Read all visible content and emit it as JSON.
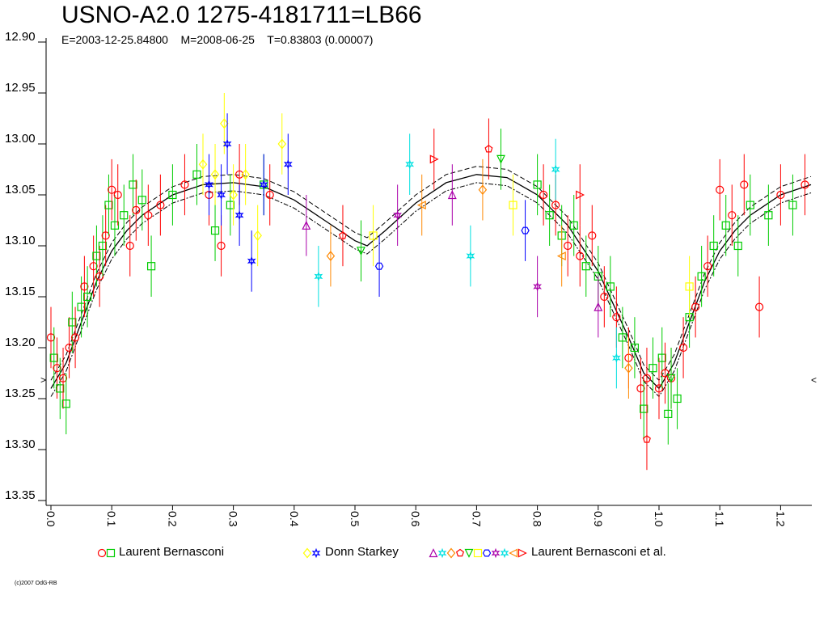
{
  "chart_data": {
    "type": "scatter",
    "title": "USNO-A2.0 1275-4181711=LB66",
    "subtitle": "E=2003-12-25.84800    M=2008-06-25    T=0.83803 (0.00007)",
    "ylim": [
      12.9,
      13.35
    ],
    "y_inverted": true,
    "xlim": [
      0.0,
      1.25
    ],
    "yticks": [
      "12.90",
      "12.95",
      "13.00",
      "13.05",
      "13.10",
      "13.15",
      "13.20",
      "13.25",
      "13.30",
      "13.35"
    ],
    "xticks": [
      "0.0",
      "0.1",
      "0.2",
      "0.3",
      "0.4",
      "0.5",
      "0.6",
      "0.7",
      "0.8",
      "0.9",
      "1.0",
      "1.1",
      "1.2"
    ],
    "grid": false,
    "legend_position": "bottom",
    "legend": [
      {
        "label": "Laurent Bernasconi",
        "symbols": [
          "circle",
          "square"
        ],
        "colors": [
          "#ff0000",
          "#00cc00"
        ]
      },
      {
        "label": "Donn Starkey",
        "symbols": [
          "diamond",
          "cross-star"
        ],
        "colors": [
          "#ffff00",
          "#0000ff"
        ]
      },
      {
        "label": "Laurent Bernasconi et al.",
        "symbols": [
          "triangle-up",
          "star",
          "diamond",
          "pentagon",
          "triangle-down",
          "square",
          "hexagon",
          "star",
          "star",
          "triangle-left",
          "triangle-right"
        ],
        "colors": [
          "#aa00aa",
          "#00e0e0",
          "#ff8800",
          "#ff0000",
          "#00cc00",
          "#ffff00",
          "#0000ff",
          "#aa00aa",
          "#00e0e0",
          "#ff8800",
          "#ff0000"
        ]
      }
    ],
    "fit_curve": {
      "phase": [
        0.0,
        0.025,
        0.05,
        0.075,
        0.1,
        0.125,
        0.15,
        0.2,
        0.25,
        0.3,
        0.35,
        0.4,
        0.45,
        0.5,
        0.52,
        0.55,
        0.6,
        0.65,
        0.7,
        0.75,
        0.8,
        0.85,
        0.9,
        0.95,
        0.975,
        1.0,
        1.025,
        1.05,
        1.075,
        1.1,
        1.125,
        1.15,
        1.2,
        1.25
      ],
      "mag": [
        13.24,
        13.215,
        13.175,
        13.135,
        13.105,
        13.085,
        13.07,
        13.05,
        13.04,
        13.038,
        13.042,
        13.055,
        13.075,
        13.095,
        13.1,
        13.085,
        13.058,
        13.038,
        13.03,
        13.033,
        13.05,
        13.08,
        13.125,
        13.19,
        13.225,
        13.24,
        13.215,
        13.175,
        13.135,
        13.105,
        13.085,
        13.07,
        13.05,
        13.04
      ],
      "band_offset": 0.008
    },
    "series": [
      {
        "name": "Laurent Bernasconi",
        "observations": [
          {
            "phase": 0.0,
            "mag": 13.19,
            "err": 0.03
          },
          {
            "phase": 0.005,
            "mag": 13.21,
            "err": 0.03
          },
          {
            "phase": 0.01,
            "mag": 13.22,
            "err": 0.03
          },
          {
            "phase": 0.015,
            "mag": 13.24,
            "err": 0.03
          },
          {
            "phase": 0.02,
            "mag": 13.23,
            "err": 0.03
          },
          {
            "phase": 0.025,
            "mag": 13.255,
            "err": 0.03
          },
          {
            "phase": 0.03,
            "mag": 13.2,
            "err": 0.03
          },
          {
            "phase": 0.035,
            "mag": 13.175,
            "err": 0.03
          },
          {
            "phase": 0.04,
            "mag": 13.19,
            "err": 0.03
          },
          {
            "phase": 0.05,
            "mag": 13.16,
            "err": 0.03
          },
          {
            "phase": 0.055,
            "mag": 13.14,
            "err": 0.03
          },
          {
            "phase": 0.06,
            "mag": 13.15,
            "err": 0.03
          },
          {
            "phase": 0.07,
            "mag": 13.12,
            "err": 0.03
          },
          {
            "phase": 0.075,
            "mag": 13.11,
            "err": 0.03
          },
          {
            "phase": 0.08,
            "mag": 13.13,
            "err": 0.03
          },
          {
            "phase": 0.085,
            "mag": 13.1,
            "err": 0.03
          },
          {
            "phase": 0.09,
            "mag": 13.09,
            "err": 0.03
          },
          {
            "phase": 0.095,
            "mag": 13.06,
            "err": 0.03
          },
          {
            "phase": 0.1,
            "mag": 13.045,
            "err": 0.03
          },
          {
            "phase": 0.105,
            "mag": 13.08,
            "err": 0.03
          },
          {
            "phase": 0.11,
            "mag": 13.05,
            "err": 0.03
          },
          {
            "phase": 0.12,
            "mag": 13.07,
            "err": 0.03
          },
          {
            "phase": 0.13,
            "mag": 13.1,
            "err": 0.03
          },
          {
            "phase": 0.135,
            "mag": 13.04,
            "err": 0.03
          },
          {
            "phase": 0.14,
            "mag": 13.065,
            "err": 0.03
          },
          {
            "phase": 0.15,
            "mag": 13.055,
            "err": 0.03
          },
          {
            "phase": 0.16,
            "mag": 13.07,
            "err": 0.03
          },
          {
            "phase": 0.165,
            "mag": 13.12,
            "err": 0.03
          },
          {
            "phase": 0.18,
            "mag": 13.06,
            "err": 0.03
          },
          {
            "phase": 0.2,
            "mag": 13.05,
            "err": 0.03
          },
          {
            "phase": 0.22,
            "mag": 13.04,
            "err": 0.03
          },
          {
            "phase": 0.24,
            "mag": 13.03,
            "err": 0.03
          },
          {
            "phase": 0.26,
            "mag": 13.05,
            "err": 0.03
          },
          {
            "phase": 0.27,
            "mag": 13.085,
            "err": 0.03
          },
          {
            "phase": 0.28,
            "mag": 13.1,
            "err": 0.03
          },
          {
            "phase": 0.295,
            "mag": 13.06,
            "err": 0.03
          },
          {
            "phase": 0.31,
            "mag": 13.03,
            "err": 0.03
          },
          {
            "phase": 0.35,
            "mag": 13.04,
            "err": 0.03
          },
          {
            "phase": 0.36,
            "mag": 13.05,
            "err": 0.03
          },
          {
            "phase": 0.8,
            "mag": 13.04,
            "err": 0.03
          },
          {
            "phase": 0.81,
            "mag": 13.05,
            "err": 0.03
          },
          {
            "phase": 0.82,
            "mag": 13.07,
            "err": 0.03
          },
          {
            "phase": 0.83,
            "mag": 13.06,
            "err": 0.03
          },
          {
            "phase": 0.84,
            "mag": 13.09,
            "err": 0.03
          },
          {
            "phase": 0.85,
            "mag": 13.1,
            "err": 0.03
          },
          {
            "phase": 0.86,
            "mag": 13.08,
            "err": 0.03
          },
          {
            "phase": 0.87,
            "mag": 13.11,
            "err": 0.03
          },
          {
            "phase": 0.88,
            "mag": 13.12,
            "err": 0.03
          },
          {
            "phase": 0.89,
            "mag": 13.09,
            "err": 0.03
          },
          {
            "phase": 0.9,
            "mag": 13.13,
            "err": 0.03
          },
          {
            "phase": 0.91,
            "mag": 13.15,
            "err": 0.03
          },
          {
            "phase": 0.92,
            "mag": 13.14,
            "err": 0.03
          },
          {
            "phase": 0.93,
            "mag": 13.17,
            "err": 0.03
          },
          {
            "phase": 0.94,
            "mag": 13.19,
            "err": 0.03
          },
          {
            "phase": 0.95,
            "mag": 13.21,
            "err": 0.03
          },
          {
            "phase": 0.96,
            "mag": 13.2,
            "err": 0.03
          },
          {
            "phase": 0.97,
            "mag": 13.24,
            "err": 0.03
          },
          {
            "phase": 0.975,
            "mag": 13.26,
            "err": 0.03
          },
          {
            "phase": 0.98,
            "mag": 13.23,
            "err": 0.03
          },
          {
            "phase": 0.99,
            "mag": 13.22,
            "err": 0.03
          },
          {
            "phase": 1.0,
            "mag": 13.24,
            "err": 0.03
          },
          {
            "phase": 1.005,
            "mag": 13.21,
            "err": 0.03
          },
          {
            "phase": 1.01,
            "mag": 13.225,
            "err": 0.03
          },
          {
            "phase": 1.015,
            "mag": 13.265,
            "err": 0.03
          },
          {
            "phase": 1.02,
            "mag": 13.23,
            "err": 0.03
          },
          {
            "phase": 1.03,
            "mag": 13.25,
            "err": 0.03
          },
          {
            "phase": 1.04,
            "mag": 13.2,
            "err": 0.03
          },
          {
            "phase": 1.05,
            "mag": 13.17,
            "err": 0.03
          },
          {
            "phase": 1.06,
            "mag": 13.16,
            "err": 0.03
          },
          {
            "phase": 1.07,
            "mag": 13.13,
            "err": 0.03
          },
          {
            "phase": 1.08,
            "mag": 13.12,
            "err": 0.03
          },
          {
            "phase": 1.09,
            "mag": 13.1,
            "err": 0.03
          },
          {
            "phase": 1.1,
            "mag": 13.045,
            "err": 0.03
          },
          {
            "phase": 1.11,
            "mag": 13.08,
            "err": 0.03
          },
          {
            "phase": 1.12,
            "mag": 13.07,
            "err": 0.03
          },
          {
            "phase": 1.13,
            "mag": 13.1,
            "err": 0.03
          },
          {
            "phase": 1.14,
            "mag": 13.04,
            "err": 0.03
          },
          {
            "phase": 1.15,
            "mag": 13.06,
            "err": 0.03
          },
          {
            "phase": 1.165,
            "mag": 13.16,
            "err": 0.03
          },
          {
            "phase": 1.18,
            "mag": 13.07,
            "err": 0.03
          },
          {
            "phase": 1.2,
            "mag": 13.05,
            "err": 0.03
          },
          {
            "phase": 1.22,
            "mag": 13.06,
            "err": 0.03
          },
          {
            "phase": 1.24,
            "mag": 13.04,
            "err": 0.03
          }
        ]
      },
      {
        "name": "Donn Starkey",
        "observations": [
          {
            "phase": 0.25,
            "mag": 13.02,
            "err": 0.03
          },
          {
            "phase": 0.26,
            "mag": 13.04,
            "err": 0.03
          },
          {
            "phase": 0.27,
            "mag": 13.03,
            "err": 0.03
          },
          {
            "phase": 0.28,
            "mag": 13.05,
            "err": 0.03
          },
          {
            "phase": 0.285,
            "mag": 12.98,
            "err": 0.03
          },
          {
            "phase": 0.29,
            "mag": 13.0,
            "err": 0.03
          },
          {
            "phase": 0.3,
            "mag": 13.05,
            "err": 0.03
          },
          {
            "phase": 0.31,
            "mag": 13.07,
            "err": 0.03
          },
          {
            "phase": 0.32,
            "mag": 13.03,
            "err": 0.03
          },
          {
            "phase": 0.33,
            "mag": 13.115,
            "err": 0.03
          },
          {
            "phase": 0.34,
            "mag": 13.09,
            "err": 0.03
          },
          {
            "phase": 0.35,
            "mag": 13.04,
            "err": 0.03
          },
          {
            "phase": 0.38,
            "mag": 13.0,
            "err": 0.03
          },
          {
            "phase": 0.39,
            "mag": 13.02,
            "err": 0.03
          }
        ]
      },
      {
        "name": "Laurent Bernasconi et al.",
        "observations": [
          {
            "phase": 0.42,
            "mag": 13.08,
            "err": 0.03
          },
          {
            "phase": 0.44,
            "mag": 13.13,
            "err": 0.03
          },
          {
            "phase": 0.46,
            "mag": 13.11,
            "err": 0.03
          },
          {
            "phase": 0.48,
            "mag": 13.09,
            "err": 0.03
          },
          {
            "phase": 0.51,
            "mag": 13.105,
            "err": 0.03
          },
          {
            "phase": 0.53,
            "mag": 13.09,
            "err": 0.03
          },
          {
            "phase": 0.54,
            "mag": 13.12,
            "err": 0.03
          },
          {
            "phase": 0.57,
            "mag": 13.07,
            "err": 0.03
          },
          {
            "phase": 0.59,
            "mag": 13.02,
            "err": 0.03
          },
          {
            "phase": 0.61,
            "mag": 13.06,
            "err": 0.03
          },
          {
            "phase": 0.63,
            "mag": 13.015,
            "err": 0.03
          },
          {
            "phase": 0.66,
            "mag": 13.05,
            "err": 0.03
          },
          {
            "phase": 0.69,
            "mag": 13.11,
            "err": 0.03
          },
          {
            "phase": 0.71,
            "mag": 13.045,
            "err": 0.03
          },
          {
            "phase": 0.72,
            "mag": 13.005,
            "err": 0.03
          },
          {
            "phase": 0.74,
            "mag": 13.015,
            "err": 0.03
          },
          {
            "phase": 0.76,
            "mag": 13.06,
            "err": 0.03
          },
          {
            "phase": 0.78,
            "mag": 13.085,
            "err": 0.03
          },
          {
            "phase": 0.8,
            "mag": 13.14,
            "err": 0.03
          },
          {
            "phase": 0.83,
            "mag": 13.025,
            "err": 0.03
          },
          {
            "phase": 0.84,
            "mag": 13.11,
            "err": 0.03
          },
          {
            "phase": 0.87,
            "mag": 13.05,
            "err": 0.03
          },
          {
            "phase": 0.9,
            "mag": 13.16,
            "err": 0.03
          },
          {
            "phase": 0.93,
            "mag": 13.21,
            "err": 0.03
          },
          {
            "phase": 0.95,
            "mag": 13.22,
            "err": 0.03
          },
          {
            "phase": 0.98,
            "mag": 13.29,
            "err": 0.03
          },
          {
            "phase": 1.02,
            "mag": 13.23,
            "err": 0.03
          },
          {
            "phase": 1.05,
            "mag": 13.14,
            "err": 0.03
          }
        ]
      }
    ]
  },
  "copyright": "(c)2007 OdG-RB",
  "right_marker": "<",
  "left_marker": ">"
}
